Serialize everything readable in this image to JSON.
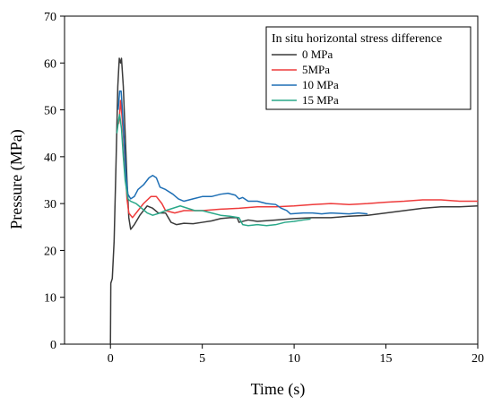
{
  "chart_data": {
    "type": "line",
    "title": "",
    "xlabel": "Time (s)",
    "ylabel": "Pressure (MPa)",
    "xlim": [
      -2.5,
      20
    ],
    "ylim": [
      0,
      70
    ],
    "xticks": [
      0,
      5,
      10,
      15,
      20
    ],
    "yticks": [
      0,
      10,
      20,
      30,
      40,
      50,
      60,
      70
    ],
    "grid": false,
    "legend": {
      "title": "In situ horizontal stress difference",
      "placement": "top-right"
    },
    "series": [
      {
        "name": "0 MPa",
        "color": "#3a3a3a",
        "points": [
          [
            0,
            0
          ],
          [
            0.02,
            13
          ],
          [
            0.1,
            14
          ],
          [
            0.2,
            22
          ],
          [
            0.3,
            38
          ],
          [
            0.4,
            55
          ],
          [
            0.48,
            61
          ],
          [
            0.55,
            60
          ],
          [
            0.6,
            61
          ],
          [
            0.7,
            55
          ],
          [
            0.8,
            45
          ],
          [
            0.9,
            35
          ],
          [
            1.0,
            27
          ],
          [
            1.1,
            24.5
          ],
          [
            1.3,
            25.5
          ],
          [
            1.6,
            27.5
          ],
          [
            2.0,
            29.5
          ],
          [
            2.3,
            29
          ],
          [
            2.6,
            28
          ],
          [
            3.0,
            28
          ],
          [
            3.3,
            26
          ],
          [
            3.6,
            25.5
          ],
          [
            4.0,
            25.8
          ],
          [
            4.5,
            25.7
          ],
          [
            5.0,
            26
          ],
          [
            5.5,
            26.3
          ],
          [
            6.0,
            26.8
          ],
          [
            6.5,
            27
          ],
          [
            6.9,
            27
          ],
          [
            7.0,
            26
          ],
          [
            7.5,
            26.5
          ],
          [
            8.0,
            26.2
          ],
          [
            9.0,
            26.5
          ],
          [
            10.0,
            26.8
          ],
          [
            11.0,
            27
          ],
          [
            12.0,
            27
          ],
          [
            13.0,
            27.3
          ],
          [
            14.0,
            27.5
          ],
          [
            15.0,
            28
          ],
          [
            16.0,
            28.5
          ],
          [
            17.0,
            29
          ],
          [
            18.0,
            29.3
          ],
          [
            19.0,
            29.3
          ],
          [
            20.0,
            29.5
          ]
        ]
      },
      {
        "name": "5MPa",
        "color": "#ee3b3b",
        "points": [
          [
            0.45,
            47
          ],
          [
            0.5,
            49
          ],
          [
            0.55,
            52
          ],
          [
            0.6,
            50
          ],
          [
            0.7,
            45
          ],
          [
            0.8,
            38
          ],
          [
            0.9,
            31
          ],
          [
            1.0,
            28
          ],
          [
            1.2,
            27
          ],
          [
            1.5,
            28.5
          ],
          [
            1.8,
            30
          ],
          [
            2.2,
            31.5
          ],
          [
            2.5,
            31.5
          ],
          [
            2.8,
            30
          ],
          [
            3.0,
            28.5
          ],
          [
            3.5,
            28
          ],
          [
            4.0,
            28.5
          ],
          [
            5.0,
            28.5
          ],
          [
            6.0,
            28.8
          ],
          [
            7.0,
            29
          ],
          [
            8.0,
            29.3
          ],
          [
            9.0,
            29.3
          ],
          [
            10.0,
            29.5
          ],
          [
            11.0,
            29.8
          ],
          [
            12.0,
            30
          ],
          [
            13.0,
            29.8
          ],
          [
            14.0,
            30
          ],
          [
            15.0,
            30.3
          ],
          [
            16.0,
            30.5
          ],
          [
            17.0,
            30.8
          ],
          [
            18.0,
            30.8
          ],
          [
            19.0,
            30.5
          ],
          [
            20.0,
            30.5
          ]
        ]
      },
      {
        "name": "10 MPa",
        "color": "#1e6fb5",
        "points": [
          [
            0.42,
            50
          ],
          [
            0.5,
            54
          ],
          [
            0.58,
            54
          ],
          [
            0.65,
            50
          ],
          [
            0.75,
            43
          ],
          [
            0.85,
            36
          ],
          [
            0.95,
            32
          ],
          [
            1.1,
            31
          ],
          [
            1.3,
            31.5
          ],
          [
            1.5,
            33
          ],
          [
            1.8,
            34
          ],
          [
            2.1,
            35.5
          ],
          [
            2.3,
            36
          ],
          [
            2.5,
            35.5
          ],
          [
            2.7,
            33.5
          ],
          [
            3.0,
            33
          ],
          [
            3.4,
            32
          ],
          [
            3.7,
            31
          ],
          [
            4.0,
            30.5
          ],
          [
            4.5,
            31
          ],
          [
            5.0,
            31.5
          ],
          [
            5.5,
            31.5
          ],
          [
            6.0,
            32
          ],
          [
            6.4,
            32.2
          ],
          [
            6.8,
            31.8
          ],
          [
            7.0,
            31
          ],
          [
            7.2,
            31.3
          ],
          [
            7.5,
            30.5
          ],
          [
            8.0,
            30.5
          ],
          [
            8.5,
            30
          ],
          [
            9.0,
            29.8
          ],
          [
            9.3,
            29
          ],
          [
            9.6,
            28.5
          ],
          [
            9.8,
            27.8
          ],
          [
            10.5,
            28
          ],
          [
            11.0,
            28
          ],
          [
            11.5,
            27.8
          ],
          [
            12.0,
            28
          ],
          [
            13.0,
            27.8
          ],
          [
            13.5,
            28
          ],
          [
            14.0,
            27.8
          ]
        ]
      },
      {
        "name": "15 MPa",
        "color": "#2aa889",
        "points": [
          [
            0.35,
            45
          ],
          [
            0.45,
            48
          ],
          [
            0.5,
            49
          ],
          [
            0.6,
            46
          ],
          [
            0.7,
            40
          ],
          [
            0.8,
            35
          ],
          [
            0.95,
            31
          ],
          [
            1.1,
            30.5
          ],
          [
            1.4,
            30
          ],
          [
            1.7,
            29
          ],
          [
            2.0,
            28
          ],
          [
            2.3,
            27.5
          ],
          [
            2.7,
            28
          ],
          [
            3.0,
            28.5
          ],
          [
            3.4,
            29
          ],
          [
            3.8,
            29.5
          ],
          [
            4.2,
            29
          ],
          [
            4.6,
            28.5
          ],
          [
            5.0,
            28.5
          ],
          [
            5.5,
            28
          ],
          [
            6.0,
            27.5
          ],
          [
            6.5,
            27.3
          ],
          [
            7.0,
            27
          ],
          [
            7.2,
            25.5
          ],
          [
            7.5,
            25.3
          ],
          [
            8.0,
            25.5
          ],
          [
            8.5,
            25.3
          ],
          [
            9.0,
            25.5
          ],
          [
            9.5,
            26
          ],
          [
            10.0,
            26.2
          ],
          [
            10.5,
            26.5
          ],
          [
            10.9,
            26.7
          ]
        ]
      }
    ]
  }
}
